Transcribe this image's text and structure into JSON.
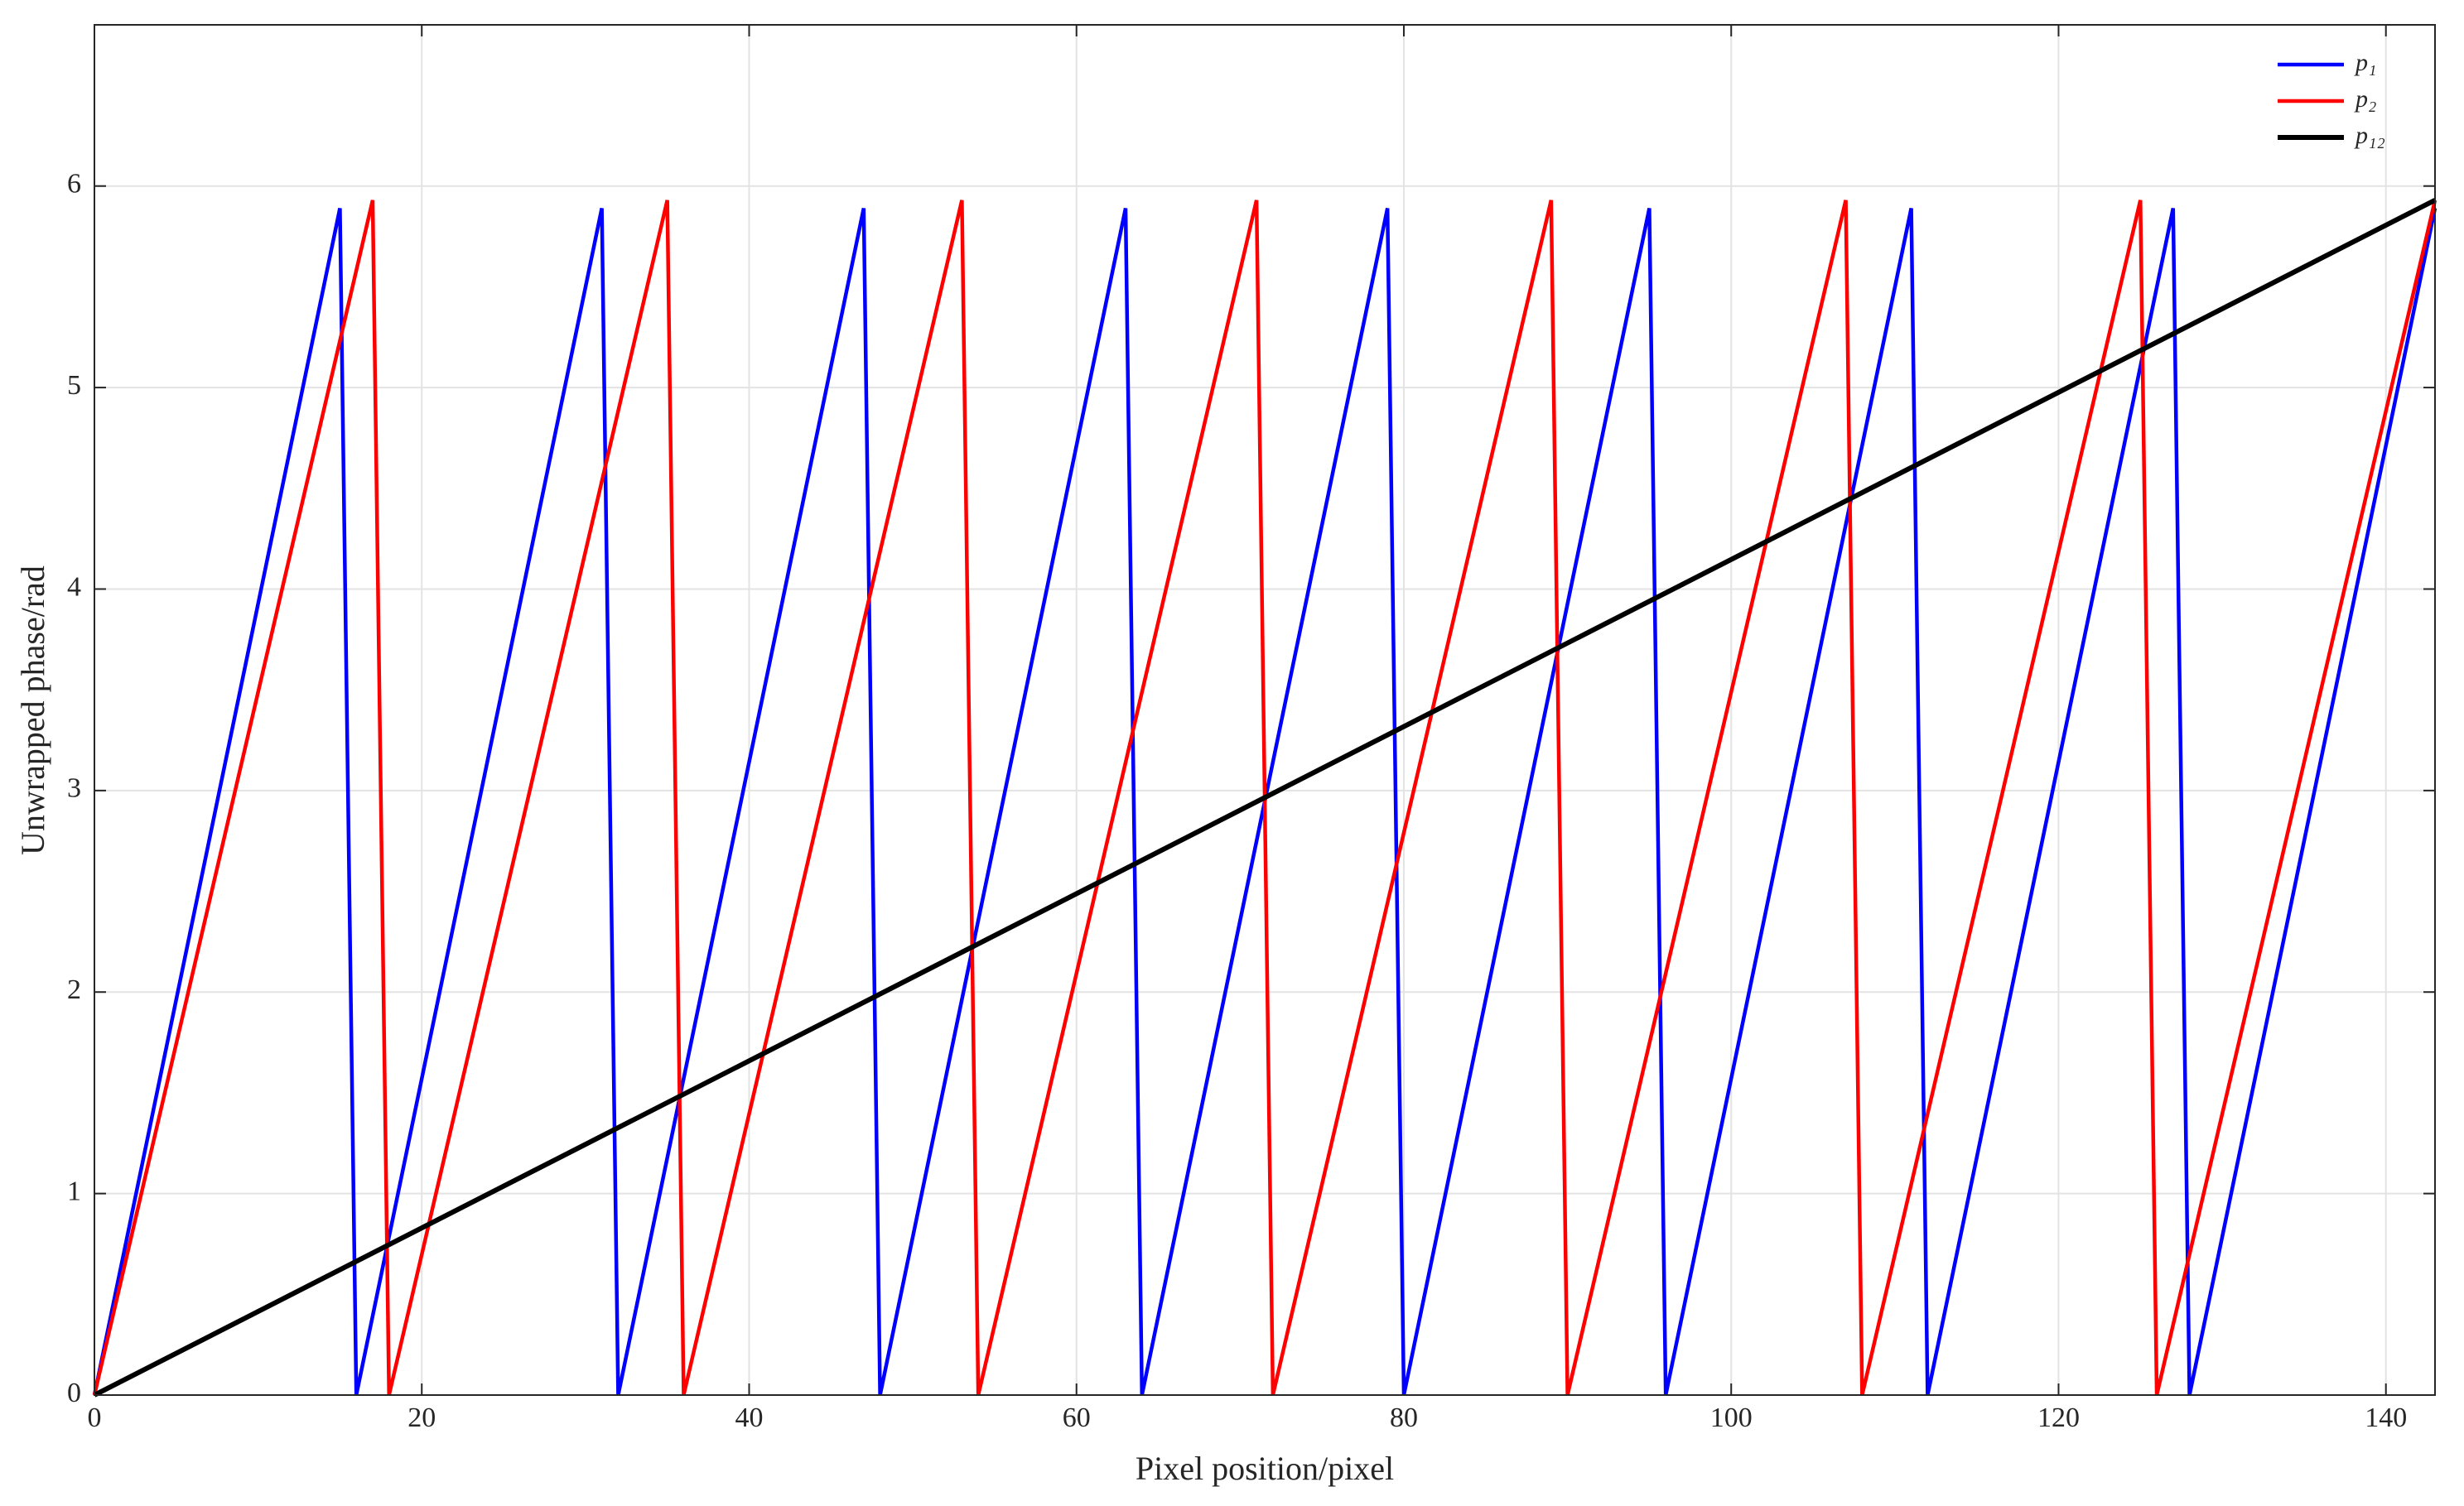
{
  "chart_data": {
    "type": "line",
    "xlabel": "Pixel position/pixel",
    "ylabel": "Unwrapped phase/rad",
    "xlim": [
      0,
      143
    ],
    "ylim": [
      0,
      6.8
    ],
    "xticks": [
      0,
      20,
      40,
      60,
      80,
      100,
      120,
      140
    ],
    "yticks": [
      0,
      1,
      2,
      3,
      4,
      5,
      6
    ],
    "grid": true,
    "legend": "northeast",
    "series": [
      {
        "name": "p₁",
        "color": "#0000ff",
        "x": [
          0,
          15,
          16,
          31,
          32,
          47,
          48,
          63,
          64,
          79,
          80,
          95,
          96,
          111,
          112,
          127,
          128,
          143
        ],
        "values": [
          0,
          5.89,
          0,
          5.89,
          0,
          5.89,
          0,
          5.89,
          0,
          5.89,
          0,
          5.89,
          0,
          5.89,
          0,
          5.89,
          0,
          5.89
        ]
      },
      {
        "name": "p₂",
        "color": "#ff0000",
        "x": [
          0,
          17,
          18,
          35,
          36,
          53,
          54,
          71,
          72,
          89,
          90,
          107,
          108,
          125,
          126,
          143
        ],
        "values": [
          0,
          5.93,
          0,
          5.93,
          0,
          5.93,
          0,
          5.93,
          0,
          5.93,
          0,
          5.93,
          0,
          5.93,
          0,
          5.93
        ]
      },
      {
        "name": "p₁₂",
        "color": "#000000",
        "x": [
          0,
          143
        ],
        "values": [
          0,
          5.93
        ]
      }
    ]
  }
}
